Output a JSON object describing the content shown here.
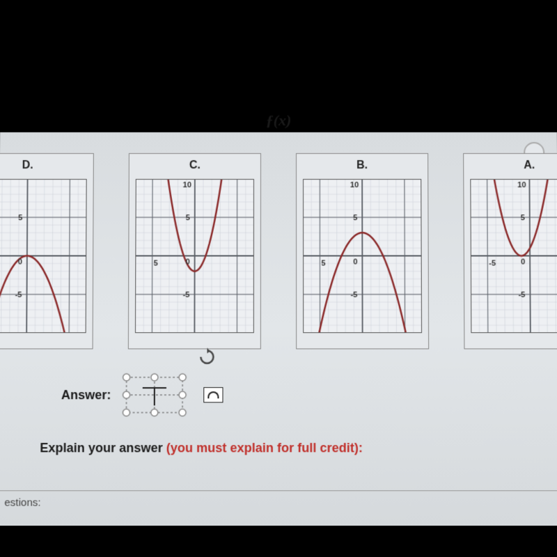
{
  "formula_fragment": "ƒ(x)",
  "graphs": [
    {
      "label": "D.",
      "type": "parabola",
      "orientation": "down",
      "vertex_x": 0,
      "vertex_y": 0,
      "coeff": -0.5,
      "curve_color": "#8b2a2a",
      "minor_grid_color": "#c8cdd4",
      "major_grid_color": "#5a5f66",
      "bg_color": "#eef0f3",
      "xlim": [
        -7,
        7
      ],
      "ylim": [
        -10,
        10
      ],
      "xticks": [
        -5,
        0,
        5
      ],
      "yticks": [
        -5,
        0,
        5
      ],
      "show_labels": {
        "0": true,
        "5": "top",
        "-5": "bottom"
      }
    },
    {
      "label": "C.",
      "type": "parabola",
      "orientation": "up",
      "vertex_x": 0,
      "vertex_y": -2,
      "coeff": 1.2,
      "curve_color": "#8b2a2a",
      "minor_grid_color": "#c8cdd4",
      "major_grid_color": "#5a5f66",
      "bg_color": "#eef0f3",
      "xlim": [
        -7,
        7
      ],
      "ylim": [
        -10,
        10
      ],
      "xticks": [
        -5,
        0,
        5
      ],
      "yticks": [
        -5,
        0,
        5,
        10
      ],
      "show_labels": {
        "0": true,
        "5l": "left",
        "5": "top",
        "-5": "bottom",
        "10": "top"
      }
    },
    {
      "label": "B.",
      "type": "parabola",
      "orientation": "down",
      "vertex_x": 0,
      "vertex_y": 3,
      "coeff": -0.5,
      "curve_color": "#8b2a2a",
      "minor_grid_color": "#c8cdd4",
      "major_grid_color": "#5a5f66",
      "bg_color": "#eef0f3",
      "xlim": [
        -7,
        7
      ],
      "ylim": [
        -10,
        10
      ],
      "xticks": [
        -5,
        0,
        5
      ],
      "yticks": [
        -5,
        0,
        5,
        10
      ],
      "show_labels": {
        "0": true,
        "5l": "left",
        "5": "top",
        "-5": "bottom",
        "10": "top"
      }
    },
    {
      "label": "A.",
      "type": "parabola",
      "orientation": "up",
      "vertex_x": -1,
      "vertex_y": 0,
      "coeff": 1.0,
      "curve_color": "#8b2a2a",
      "minor_grid_color": "#c8cdd4",
      "major_grid_color": "#5a5f66",
      "bg_color": "#eef0f3",
      "xlim": [
        -7,
        7
      ],
      "ylim": [
        -10,
        10
      ],
      "xticks": [
        -5,
        0,
        5
      ],
      "yticks": [
        -5,
        0,
        5,
        10
      ],
      "show_labels": {
        "0": true,
        "-5l": "left",
        "5": "top",
        "-5": "bottom",
        "10": "top"
      }
    }
  ],
  "answer_label": "Answer:",
  "explain_black": "Explain your answer ",
  "explain_red": "(you must explain for full credit):",
  "bottom_fragment": "estions:",
  "selection": {
    "handle_color": "#888888",
    "handle_fill": "#ffffff",
    "dash_color": "#555555"
  }
}
